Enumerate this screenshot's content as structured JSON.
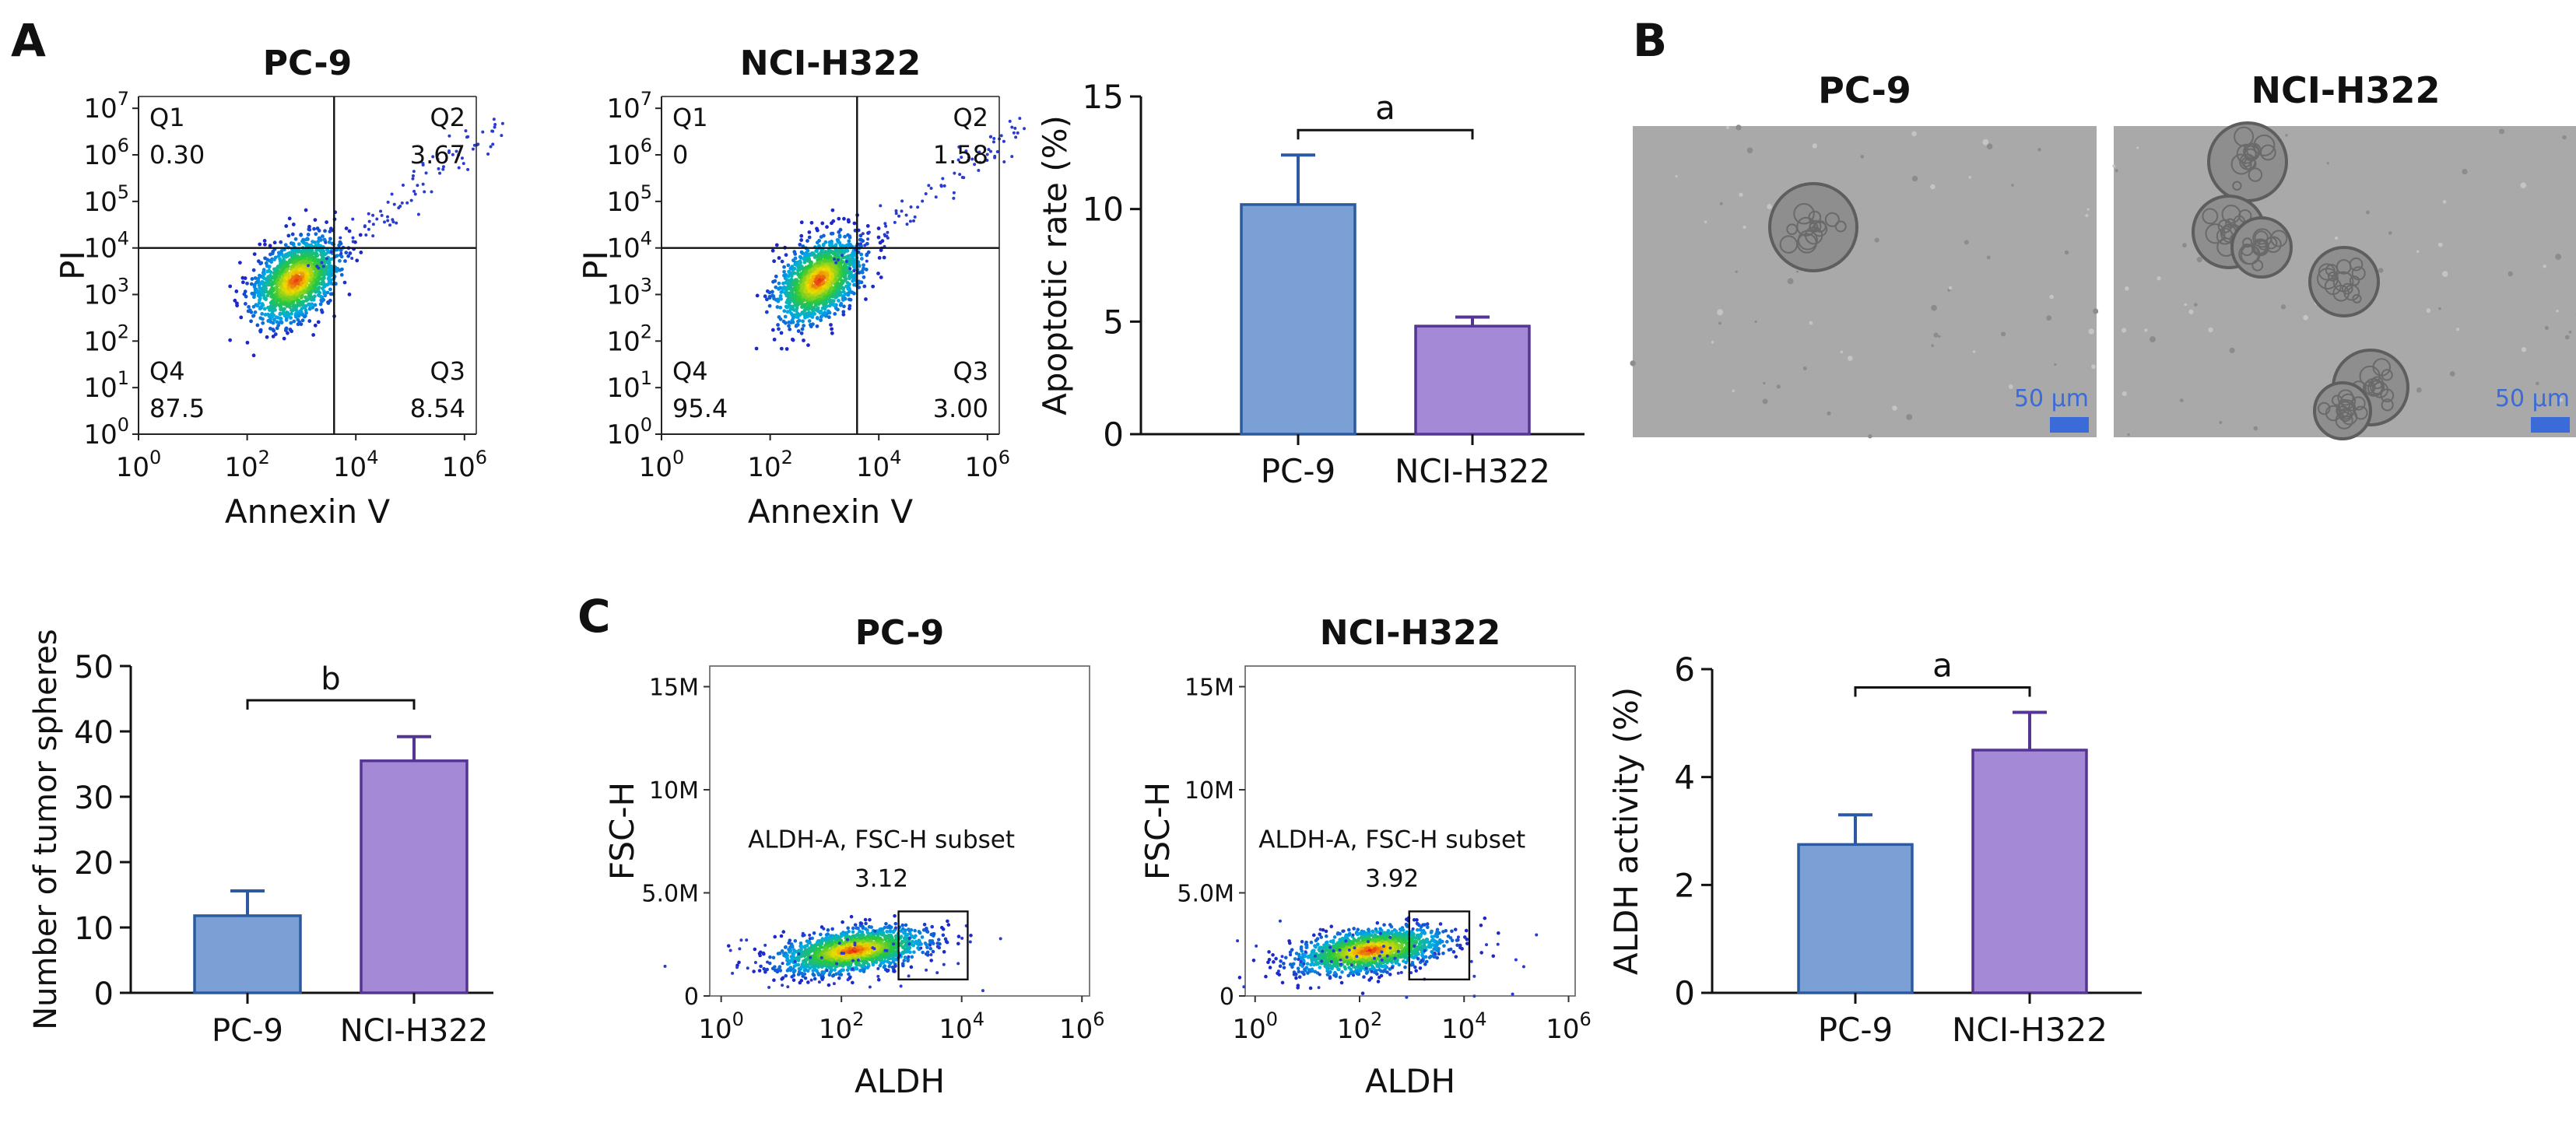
{
  "panel_labels": {
    "A": "A",
    "B": "B",
    "C": "C"
  },
  "flow_exponents": [
    "0",
    "1",
    "2",
    "3",
    "4",
    "5",
    "6",
    "7"
  ],
  "log_base": "10",
  "fsc_ticks": [
    "0",
    "5.0M",
    "10M",
    "15M"
  ],
  "micrographs": {
    "left_title": "PC-9",
    "right_title": "NCI-H322",
    "scale_bar_label": "50 µm",
    "scale_bar_color": "#3a6bd8"
  },
  "colors": {
    "pc9": "#7aa0d6",
    "pc9_edge": "#2c5aa0",
    "h322": "#a489d6",
    "h322_edge": "#553592",
    "bracket": "#111111"
  },
  "chart_data": [
    {
      "id": "flow-pc9",
      "type": "scatter",
      "title": "PC-9",
      "xlabel": "Annexin V",
      "ylabel": "PI",
      "x_scale": "log",
      "y_scale": "log",
      "xlim": [
        1,
        1000000
      ],
      "ylim": [
        1,
        10000000
      ],
      "gates": [
        {
          "name": "Q1",
          "value": "0.30"
        },
        {
          "name": "Q2",
          "value": "3.67"
        },
        {
          "name": "Q3",
          "value": "8.54"
        },
        {
          "name": "Q4",
          "value": "87.5"
        }
      ]
    },
    {
      "id": "flow-h322",
      "type": "scatter",
      "title": "NCI-H322",
      "xlabel": "Annexin V",
      "ylabel": "PI",
      "x_scale": "log",
      "y_scale": "log",
      "xlim": [
        1,
        1000000
      ],
      "ylim": [
        1,
        10000000
      ],
      "gates": [
        {
          "name": "Q1",
          "value": "0"
        },
        {
          "name": "Q2",
          "value": "1.58"
        },
        {
          "name": "Q3",
          "value": "3.00"
        },
        {
          "name": "Q4",
          "value": "95.4"
        }
      ]
    },
    {
      "id": "apoptotic-bar",
      "type": "bar",
      "categories": [
        "PC-9",
        "NCI-H322"
      ],
      "values": [
        10.2,
        4.8
      ],
      "errors": [
        2.2,
        0.4
      ],
      "ylabel": "Apoptotic rate (%)",
      "ylim": [
        0,
        15
      ],
      "yticks": [
        0,
        5,
        10,
        15
      ],
      "significance": "a"
    },
    {
      "id": "spheres-bar",
      "type": "bar",
      "categories": [
        "PC-9",
        "NCI-H322"
      ],
      "values": [
        11.8,
        35.5
      ],
      "errors": [
        3.8,
        3.7
      ],
      "ylabel": "Number of tumor spheres",
      "ylim": [
        0,
        50
      ],
      "yticks": [
        0,
        10,
        20,
        30,
        40,
        50
      ],
      "significance": "b"
    },
    {
      "id": "aldh-pc9",
      "type": "scatter",
      "title": "PC-9",
      "xlabel": "ALDH",
      "ylabel": "FSC-H",
      "x_scale": "log",
      "xlim": [
        1,
        1000000
      ],
      "ylim": [
        0,
        16000000
      ],
      "gate_label": "ALDH-A, FSC-H subset",
      "gate_value": "3.12"
    },
    {
      "id": "aldh-h322",
      "type": "scatter",
      "title": "NCI-H322",
      "xlabel": "ALDH",
      "ylabel": "FSC-H",
      "x_scale": "log",
      "xlim": [
        1,
        1000000
      ],
      "ylim": [
        0,
        16000000
      ],
      "gate_label": "ALDH-A, FSC-H subset",
      "gate_value": "3.92"
    },
    {
      "id": "aldh-bar",
      "type": "bar",
      "categories": [
        "PC-9",
        "NCI-H322"
      ],
      "values": [
        2.75,
        4.5
      ],
      "errors": [
        0.55,
        0.7
      ],
      "ylabel": "ALDH activity (%)",
      "ylim": [
        0,
        6
      ],
      "yticks": [
        0,
        2,
        4,
        6
      ],
      "significance": "a"
    }
  ]
}
